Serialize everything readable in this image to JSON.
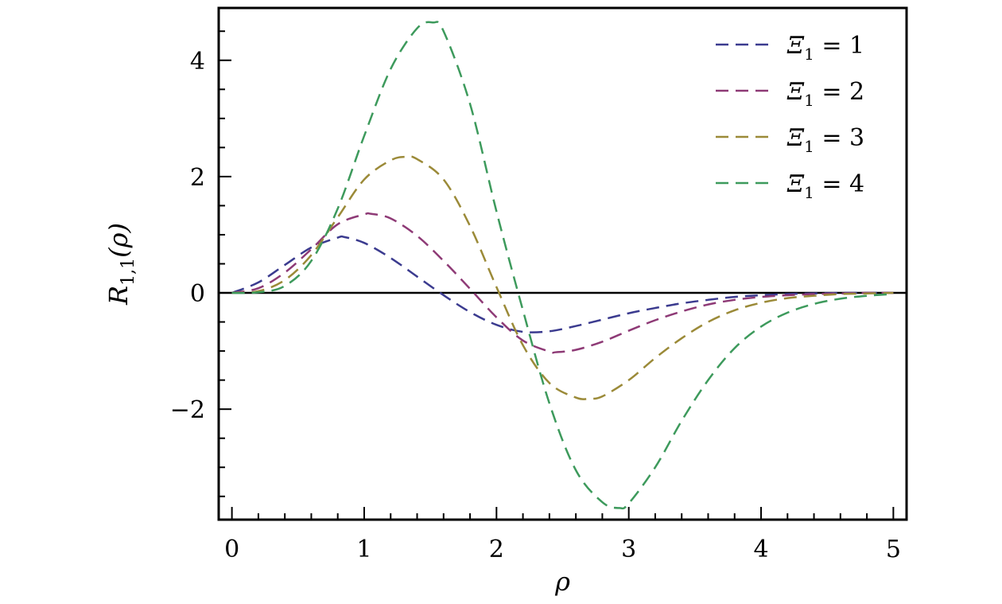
{
  "chart_data": {
    "type": "line",
    "title": "",
    "xlabel": "ρ",
    "ylabel": "R1,1(ρ)",
    "ylabel_parts": {
      "base": "R",
      "sub": "1,1",
      "arg": "(ρ)"
    },
    "xlim": [
      -0.1,
      5.1
    ],
    "ylim": [
      -3.9,
      4.9
    ],
    "x_ticks": [
      0,
      1,
      2,
      3,
      4,
      5
    ],
    "x_tick_labels": [
      "0",
      "1",
      "2",
      "3",
      "4",
      "5"
    ],
    "y_ticks": [
      -2,
      0,
      2,
      4
    ],
    "y_tick_labels": [
      "−2",
      "0",
      "2",
      "4"
    ],
    "zero_line": true,
    "grid": false,
    "legend_position": "top-right",
    "series": [
      {
        "name": "Ξ1 = 1",
        "label_parts": {
          "sym": "Ξ",
          "sub": "1",
          "rest": " = 1"
        },
        "color": "#3b3b8f",
        "peak_x": 0.85,
        "peak_y": 0.96,
        "trough_x": 2.25,
        "trough_y": -0.67,
        "x": [
          0,
          0.2,
          0.4,
          0.6,
          0.8,
          0.85,
          1.0,
          1.2,
          1.4,
          1.6,
          1.8,
          2.0,
          2.2,
          2.4,
          2.6,
          2.8,
          3.0,
          3.2,
          3.4,
          3.6,
          3.8,
          4.0,
          4.2,
          4.4,
          4.6,
          4.8,
          5.0
        ],
        "y": [
          0,
          0.18,
          0.48,
          0.78,
          0.95,
          0.96,
          0.86,
          0.6,
          0.28,
          -0.04,
          -0.33,
          -0.55,
          -0.67,
          -0.66,
          -0.57,
          -0.46,
          -0.35,
          -0.26,
          -0.18,
          -0.12,
          -0.07,
          -0.04,
          -0.02,
          -0.01,
          0,
          0,
          0
        ]
      },
      {
        "name": "Ξ1 = 2",
        "label_parts": {
          "sym": "Ξ",
          "sub": "1",
          "rest": " = 2"
        },
        "color": "#8e3a76",
        "peak_x": 1.05,
        "peak_y": 1.36,
        "trough_x": 2.45,
        "trough_y": -1.02,
        "x": [
          0,
          0.2,
          0.4,
          0.6,
          0.8,
          1.0,
          1.05,
          1.2,
          1.4,
          1.6,
          1.8,
          2.0,
          2.2,
          2.4,
          2.45,
          2.6,
          2.8,
          3.0,
          3.2,
          3.4,
          3.6,
          3.8,
          4.0,
          4.2,
          4.4,
          4.6,
          4.8,
          5.0
        ],
        "y": [
          0,
          0.08,
          0.35,
          0.75,
          1.18,
          1.35,
          1.36,
          1.28,
          0.98,
          0.55,
          0.07,
          -0.42,
          -0.82,
          -1.01,
          -1.02,
          -0.98,
          -0.84,
          -0.65,
          -0.47,
          -0.32,
          -0.2,
          -0.12,
          -0.07,
          -0.04,
          -0.02,
          -0.01,
          0,
          0
        ]
      },
      {
        "name": "Ξ1 = 3",
        "label_parts": {
          "sym": "Ξ",
          "sub": "1",
          "rest": " = 3"
        },
        "color": "#9b8a38",
        "peak_x": 1.32,
        "peak_y": 2.34,
        "trough_x": 2.7,
        "trough_y": -1.82,
        "x": [
          0,
          0.2,
          0.4,
          0.6,
          0.8,
          1.0,
          1.2,
          1.32,
          1.4,
          1.6,
          1.8,
          2.0,
          2.2,
          2.4,
          2.6,
          2.7,
          2.8,
          3.0,
          3.2,
          3.4,
          3.6,
          3.8,
          4.0,
          4.2,
          4.4,
          4.6,
          4.8,
          5.0
        ],
        "y": [
          0,
          0.03,
          0.22,
          0.65,
          1.3,
          1.95,
          2.28,
          2.34,
          2.3,
          1.95,
          1.15,
          0.1,
          -0.9,
          -1.55,
          -1.8,
          -1.82,
          -1.78,
          -1.5,
          -1.12,
          -0.78,
          -0.5,
          -0.3,
          -0.17,
          -0.09,
          -0.05,
          -0.02,
          -0.01,
          0
        ]
      },
      {
        "name": "Ξ1 = 4",
        "label_parts": {
          "sym": "Ξ",
          "sub": "1",
          "rest": " = 4"
        },
        "color": "#3d9a5c",
        "peak_x": 1.52,
        "peak_y": 4.65,
        "trough_x": 2.93,
        "trough_y": -3.7,
        "x": [
          0,
          0.2,
          0.4,
          0.6,
          0.8,
          1.0,
          1.2,
          1.4,
          1.52,
          1.6,
          1.8,
          2.0,
          2.2,
          2.4,
          2.6,
          2.8,
          2.93,
          3.0,
          3.2,
          3.4,
          3.6,
          3.8,
          4.0,
          4.2,
          4.4,
          4.6,
          4.8,
          5.0
        ],
        "y": [
          0,
          0.01,
          0.12,
          0.55,
          1.45,
          2.7,
          3.85,
          4.55,
          4.65,
          4.5,
          3.25,
          1.4,
          -0.3,
          -1.9,
          -3.05,
          -3.6,
          -3.7,
          -3.62,
          -3.0,
          -2.2,
          -1.5,
          -0.95,
          -0.58,
          -0.34,
          -0.19,
          -0.1,
          -0.05,
          -0.02
        ]
      }
    ]
  }
}
